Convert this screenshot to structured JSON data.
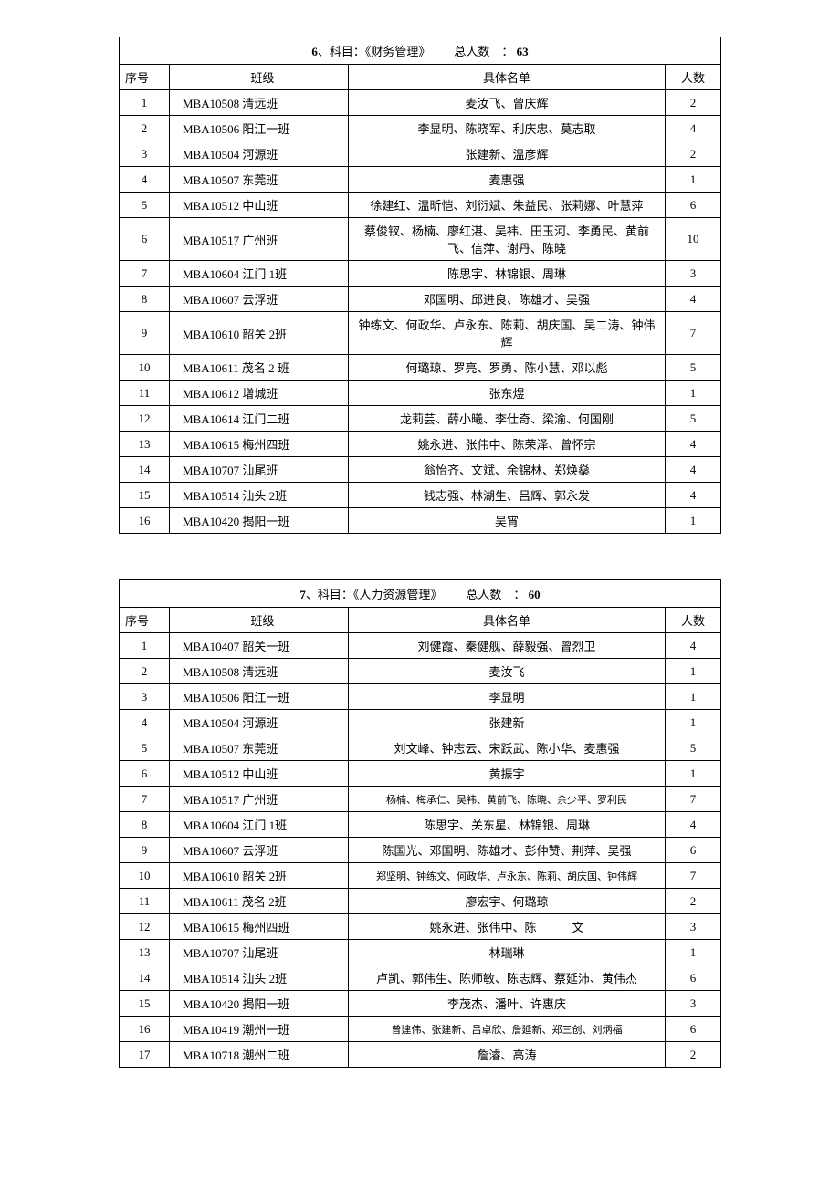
{
  "tables": [
    {
      "title_num": "6",
      "title_sep": "、科目：",
      "title_subject": "《财务管理》",
      "title_total_label": "总人数",
      "title_colon": "：",
      "title_total": "63",
      "headers": {
        "seq": "序号",
        "class": "班级",
        "names": "具体名单",
        "count": "人数"
      },
      "rows": [
        {
          "seq": "1",
          "class": "MBA10508  清远班",
          "names": "麦汝飞、曾庆辉",
          "count": "2"
        },
        {
          "seq": "2",
          "class": "MBA10506  阳江一班",
          "names": "李显明、陈晓军、利庆忠、莫志取",
          "count": "4"
        },
        {
          "seq": "3",
          "class": "MBA10504  河源班",
          "names": "张建新、温彦辉",
          "count": "2"
        },
        {
          "seq": "4",
          "class": "MBA10507  东莞班",
          "names": "麦惠强",
          "count": "1"
        },
        {
          "seq": "5",
          "class": "MBA10512  中山班",
          "names": "徐建红、温昕恺、刘衍斌、朱益民、张莉娜、叶慧萍",
          "count": "6"
        },
        {
          "seq": "6",
          "class": "MBA10517  广州班",
          "names": "蔡俊钗、杨楠、廖红湛、吴袆、田玉河、李勇民、黄前飞、信萍、谢丹、陈晓",
          "count": "10"
        },
        {
          "seq": "7",
          "class": "MBA10604  江门 1班",
          "names": "陈思宇、林锦银、周琳",
          "count": "3"
        },
        {
          "seq": "8",
          "class": "MBA10607  云浮班",
          "names": "邓国明、邱进良、陈雄才、吴强",
          "count": "4"
        },
        {
          "seq": "9",
          "class": "MBA10610  韶关 2班",
          "names": "钟练文、何政华、卢永东、陈莉、胡庆国、吴二涛、钟伟辉",
          "count": "7"
        },
        {
          "seq": "10",
          "class": "MBA10611  茂名 2 班",
          "names": "何璐琼、罗亮、罗勇、陈小慧、邓以彪",
          "count": "5"
        },
        {
          "seq": "11",
          "class": "MBA10612  增城班",
          "names": "张东煜",
          "count": "1"
        },
        {
          "seq": "12",
          "class": "MBA10614  江门二班",
          "names": "龙莉芸、薛小曦、李仕奇、梁渝、何国刚",
          "count": "5"
        },
        {
          "seq": "13",
          "class": "MBA10615  梅州四班",
          "names": "姚永进、张伟中、陈荣泽、曾怀宗",
          "count": "4"
        },
        {
          "seq": "14",
          "class": "MBA10707  汕尾班",
          "names": "翁怡齐、文斌、余锦林、郑焕燊",
          "count": "4"
        },
        {
          "seq": "15",
          "class": "MBA10514  汕头 2班",
          "names": "钱志强、林湖生、吕辉、郭永发",
          "count": "4"
        },
        {
          "seq": "16",
          "class": "MBA10420  揭阳一班",
          "names": "吴宵",
          "count": "1"
        }
      ]
    },
    {
      "title_num": "7",
      "title_sep": "、科目：",
      "title_subject": "《人力资源管理》",
      "title_total_label": "总人数",
      "title_colon": "：",
      "title_total": "60",
      "headers": {
        "seq": "序号",
        "class": "班级",
        "names": "具体名单",
        "count": "人数"
      },
      "rows": [
        {
          "seq": "1",
          "class": "MBA10407  韶关一班",
          "names": "刘健霞、秦健舰、薛毅强、曾烈卫",
          "count": "4"
        },
        {
          "seq": "2",
          "class": "MBA10508  清远班",
          "names": "麦汝飞",
          "count": "1"
        },
        {
          "seq": "3",
          "class": "MBA10506  阳江一班",
          "names": "李显明",
          "count": "1"
        },
        {
          "seq": "4",
          "class": "MBA10504  河源班",
          "names": "张建新",
          "count": "1"
        },
        {
          "seq": "5",
          "class": "MBA10507  东莞班",
          "names": "刘文峰、钟志云、宋跃武、陈小华、麦惠强",
          "count": "5"
        },
        {
          "seq": "6",
          "class": "MBA10512  中山班",
          "names": "黄振宇",
          "count": "1"
        },
        {
          "seq": "7",
          "class": "MBA10517  广州班",
          "names": "杨楠、梅承仁、吴袆、黄前飞、陈晓、余少平、罗利民",
          "count": "7",
          "small": true
        },
        {
          "seq": "8",
          "class": "MBA10604  江门 1班",
          "names": "陈思宇、关东星、林锦银、周琳",
          "count": "4"
        },
        {
          "seq": "9",
          "class": "MBA10607  云浮班",
          "names": "陈国光、邓国明、陈雄才、彭仲赞、荆萍、吴强",
          "count": "6"
        },
        {
          "seq": "10",
          "class": "MBA10610  韶关 2班",
          "names": "郑坚明、钟练文、何政华、卢永东、陈莉、胡庆国、钟伟辉",
          "count": "7",
          "small": true
        },
        {
          "seq": "11",
          "class": "MBA10611  茂名 2班",
          "names": "廖宏宇、何璐琼",
          "count": "2"
        },
        {
          "seq": "12",
          "class": "MBA10615  梅州四班",
          "names": "姚永进、张伟中、陈　　　文",
          "count": "3"
        },
        {
          "seq": "13",
          "class": "MBA10707  汕尾班",
          "names": "林瑞琳",
          "count": "1"
        },
        {
          "seq": "14",
          "class": "MBA10514  汕头 2班",
          "names": "卢凯、郭伟生、陈师敏、陈志辉、蔡延沛、黄伟杰",
          "count": "6"
        },
        {
          "seq": "15",
          "class": "MBA10420  揭阳一班",
          "names": "李茂杰、潘叶、许惠庆",
          "count": "3"
        },
        {
          "seq": "16",
          "class": "MBA10419  潮州一班",
          "names": "曾建伟、张建新、吕卓欣、詹延新、郑三创、刘炳福",
          "count": "6",
          "small": true
        },
        {
          "seq": "17",
          "class": "MBA10718  潮州二班",
          "names": "詹濬、高涛",
          "count": "2"
        }
      ]
    }
  ]
}
